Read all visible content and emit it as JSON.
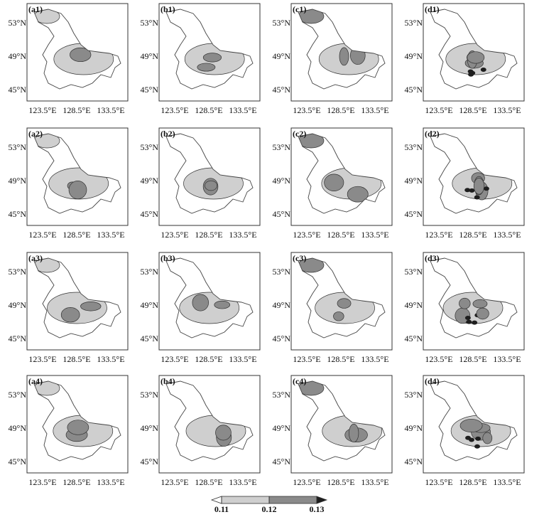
{
  "panels": [
    "(a1)",
    "(b1)",
    "(c1)",
    "(d1)",
    "(a2)",
    "(b2)",
    "(c2)",
    "(d2)",
    "(a3)",
    "(b3)",
    "(c3)",
    "(d3)",
    "(a4)",
    "(b4)",
    "(c4)",
    "(d4)"
  ],
  "lat_ticks": [
    "53°N",
    "49°N",
    "45°N"
  ],
  "lon_ticks": [
    "123.5°E",
    "128.5°E",
    "133.5°E"
  ],
  "colorbar": {
    "levels": [
      0.11,
      0.12,
      0.13
    ],
    "colors": [
      "#ffffff",
      "#cfcfcf",
      "#8a8a8a",
      "#1e1e1e"
    ]
  }
}
